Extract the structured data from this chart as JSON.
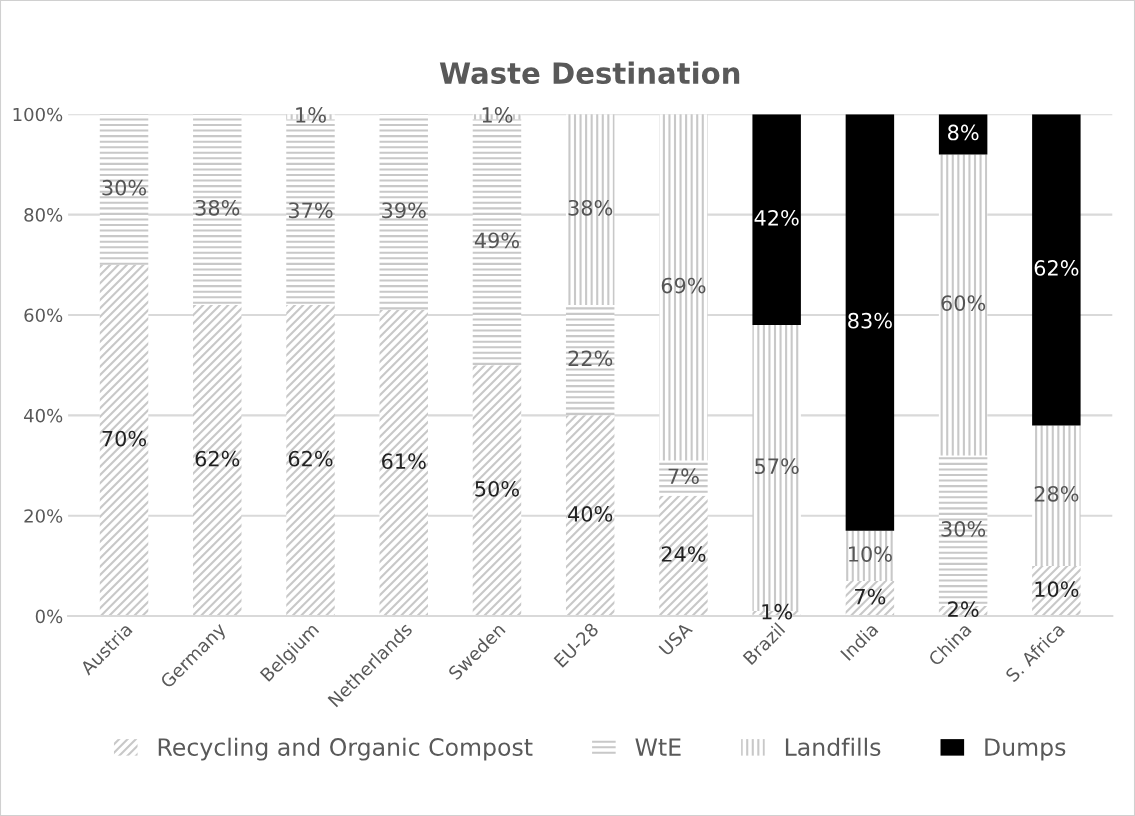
{
  "chart_data": {
    "type": "bar",
    "title": "Waste Destination",
    "stacked": true,
    "categories": [
      "Austria",
      "Germany",
      "Belgium",
      "Netherlands",
      "Sweden",
      "EU-28",
      "USA",
      "Brazil",
      "India",
      "China",
      "S. Africa"
    ],
    "series": [
      {
        "name": "Recycling and Organic Compost",
        "color": "#c8c8c8",
        "values": [
          70,
          62,
          62,
          61,
          50,
          40,
          24,
          1,
          7,
          2,
          10
        ],
        "value_labels": [
          "70%",
          "62%",
          "62%",
          "61%",
          "50%",
          "40%",
          "24%",
          "1%",
          "7%",
          "2%",
          "10%"
        ]
      },
      {
        "name": "WtE",
        "color": "#c8c8c8",
        "values": [
          30,
          38,
          37,
          39,
          49,
          22,
          7,
          0,
          0,
          30,
          0
        ],
        "value_labels": [
          "30%",
          "38%",
          "37%",
          "39%",
          "49%",
          "22%",
          "7%",
          null,
          null,
          "30%",
          null
        ]
      },
      {
        "name": "Landfills",
        "color": "#c8c8c8",
        "values": [
          0,
          0,
          1,
          0,
          1,
          38,
          69,
          57,
          10,
          60,
          28
        ],
        "value_labels": [
          null,
          null,
          "1%",
          null,
          "1%",
          "38%",
          "69%",
          "57%",
          "10%",
          "60%",
          "28%"
        ]
      },
      {
        "name": "Dumps",
        "color": "#000000",
        "values": [
          0,
          0,
          0,
          0,
          0,
          0,
          0,
          42,
          83,
          8,
          62
        ],
        "value_labels": [
          null,
          null,
          null,
          null,
          null,
          null,
          null,
          "42%",
          "83%",
          "8%",
          "62%"
        ]
      }
    ],
    "ylim": [
      0,
      100
    ],
    "yticks": [
      {
        "value": 0,
        "label": "0%"
      },
      {
        "value": 20,
        "label": "20%"
      },
      {
        "value": 40,
        "label": "40%"
      },
      {
        "value": 60,
        "label": "60%"
      },
      {
        "value": 80,
        "label": "80%"
      },
      {
        "value": 100,
        "label": "100%"
      }
    ],
    "grid": "y",
    "legend": "bottom"
  }
}
